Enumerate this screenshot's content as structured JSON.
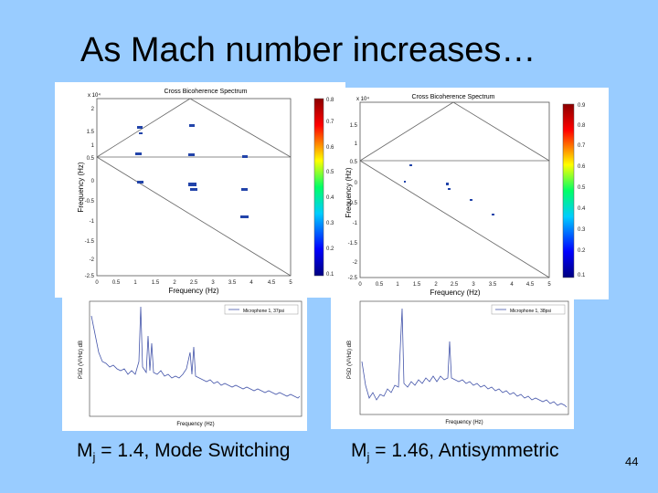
{
  "slide": {
    "title": "As Mach number increases…",
    "page_number": "44",
    "colors": {
      "background": "#99ccff",
      "plot_line": "#4455aa",
      "marker": "#2244aa"
    }
  },
  "left": {
    "bispectrum": {
      "title": "Cross Bicoherence Spectrum",
      "xlabel": "Frequency (Hz)",
      "ylabel": "Frequency (Hz)",
      "exponent": "x 10⁴",
      "yticks": [
        "2",
        "1.5",
        "1",
        "0.5",
        "0",
        "-0.5",
        "-1",
        "-1.5",
        "-2",
        "-2.5"
      ],
      "xticks": [
        "0",
        "0.5",
        "1",
        "1.5",
        "2",
        "2.5",
        "3",
        "3.5",
        "4",
        "4.5",
        "5"
      ],
      "colorbar_ticks": [
        "0.8",
        "0.7",
        "0.6",
        "0.5",
        "0.4",
        "0.3",
        "0.2",
        "0.1"
      ]
    },
    "psd": {
      "xlabel": "Frequency (Hz)",
      "ylabel": "PSD (V²/Hz) dB",
      "legend": "Microphone 1, 37psi"
    },
    "caption": {
      "prefix": "M",
      "sub": "j",
      "text": " = 1.4, Mode Switching"
    }
  },
  "right": {
    "bispectrum": {
      "title": "Cross Bicoherence Spectrum",
      "xlabel": "Frequency (Hz)",
      "ylabel": "Frequency (Hz)",
      "exponent": "x 10⁴",
      "yticks": [
        "1.5",
        "1",
        "0.5",
        "0",
        "-0.5",
        "-1",
        "-1.5",
        "-2",
        "-2.5"
      ],
      "xticks": [
        "0",
        "0.5",
        "1",
        "1.5",
        "2",
        "2.5",
        "3",
        "3.5",
        "4",
        "4.5",
        "5"
      ],
      "colorbar_ticks": [
        "0.9",
        "0.8",
        "0.7",
        "0.6",
        "0.5",
        "0.4",
        "0.3",
        "0.2",
        "0.1"
      ]
    },
    "psd": {
      "xlabel": "Frequency (Hz)",
      "ylabel": "PSD (V²/Hz) dB",
      "legend": "Microphone 1, 38psi"
    },
    "caption": {
      "prefix": "M",
      "sub": "j",
      "text": " = 1.46, Antisymmetric"
    }
  }
}
